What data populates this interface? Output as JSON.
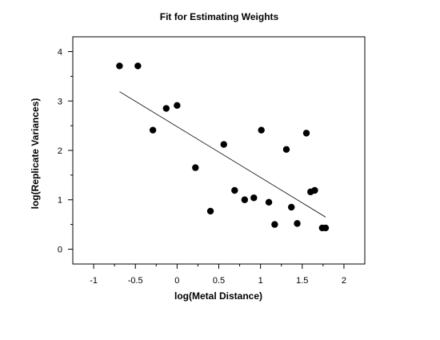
{
  "chart_data": {
    "type": "scatter",
    "title": "Fit for Estimating Weights",
    "xlabel": "log(Metal Distance)",
    "ylabel": "log(Replicate Variances)",
    "xlim": [
      -1.25,
      2.25
    ],
    "ylim": [
      -0.3,
      4.3
    ],
    "x_ticks": [
      -1,
      -0.5,
      0,
      0.5,
      1,
      1.5,
      2
    ],
    "x_tick_labels": [
      "-1",
      "-0.5",
      "0",
      "0.5",
      "1",
      "1.5",
      "2"
    ],
    "y_ticks": [
      0,
      1,
      2,
      3,
      4
    ],
    "y_tick_labels": [
      "0",
      "1",
      "2",
      "3",
      "4"
    ],
    "grid": false,
    "legend": "none",
    "colors": {
      "points": "#000000",
      "line": "#000000",
      "axes": "#000000"
    },
    "points": [
      {
        "x": -0.69,
        "y": 3.71
      },
      {
        "x": -0.47,
        "y": 3.71
      },
      {
        "x": -0.29,
        "y": 2.41
      },
      {
        "x": -0.13,
        "y": 2.85
      },
      {
        "x": 0.0,
        "y": 2.91
      },
      {
        "x": 0.22,
        "y": 1.65
      },
      {
        "x": 0.4,
        "y": 0.77
      },
      {
        "x": 0.56,
        "y": 2.12
      },
      {
        "x": 0.69,
        "y": 1.19
      },
      {
        "x": 0.81,
        "y": 1.0
      },
      {
        "x": 0.92,
        "y": 1.04
      },
      {
        "x": 1.01,
        "y": 2.41
      },
      {
        "x": 1.1,
        "y": 0.95
      },
      {
        "x": 1.17,
        "y": 0.5
      },
      {
        "x": 1.31,
        "y": 2.02
      },
      {
        "x": 1.37,
        "y": 0.85
      },
      {
        "x": 1.44,
        "y": 0.52
      },
      {
        "x": 1.55,
        "y": 2.35
      },
      {
        "x": 1.6,
        "y": 1.16
      },
      {
        "x": 1.65,
        "y": 1.19
      },
      {
        "x": 1.74,
        "y": 0.43
      },
      {
        "x": 1.78,
        "y": 0.43
      }
    ],
    "fit_line": [
      {
        "x": -0.69,
        "y": 3.19
      },
      {
        "x": 1.78,
        "y": 0.65
      }
    ]
  }
}
